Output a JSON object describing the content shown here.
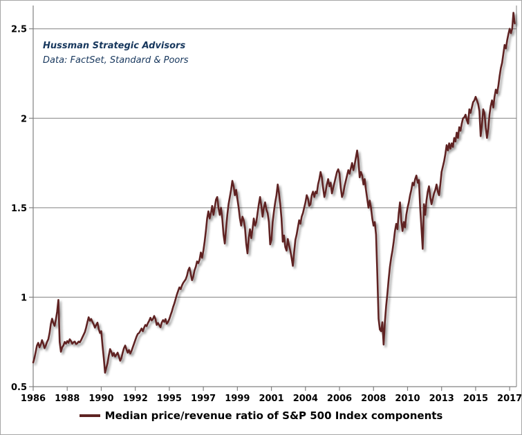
{
  "annotation": {
    "line1": "Hussman Strategic Advisors",
    "line2": "Data: FactSet, Standard & Poors"
  },
  "legend": {
    "label": "Median price/revenue ratio of S&P 500 Index components"
  },
  "colors": {
    "series": "#5E2322",
    "grid": "#808080",
    "axis": "#808080",
    "annotation_text": "#17375D",
    "border": "#A6A6A6"
  },
  "chart_data": {
    "type": "line",
    "title": "",
    "legend_position": "bottom-center",
    "grid": "horizontal-only",
    "xlabel": "",
    "ylabel": "",
    "x_tick_labels": [
      "1986",
      "1988",
      "1990",
      "1992",
      "1995",
      "1997",
      "1999",
      "2001",
      "2004",
      "2006",
      "2008",
      "2010",
      "2013",
      "2015",
      "2017"
    ],
    "x_tick_interval_years": 2.25,
    "y_tick_labels": [
      "0.5",
      "1",
      "1.5",
      "2",
      "2.5"
    ],
    "y_ticks": [
      0.5,
      1,
      1.5,
      2,
      2.5
    ],
    "ylim": [
      0.5,
      2.63
    ],
    "xlim_years": [
      1986.0,
      2017.95
    ],
    "series": [
      {
        "name": "Median price/revenue ratio of S&P 500 Index components",
        "start_year": 1986,
        "frequency": "monthly",
        "values": [
          0.635,
          0.66,
          0.695,
          0.73,
          0.745,
          0.72,
          0.735,
          0.76,
          0.74,
          0.715,
          0.73,
          0.75,
          0.765,
          0.8,
          0.85,
          0.88,
          0.855,
          0.84,
          0.875,
          0.92,
          0.985,
          0.75,
          0.695,
          0.72,
          0.73,
          0.75,
          0.74,
          0.755,
          0.745,
          0.765,
          0.755,
          0.74,
          0.748,
          0.752,
          0.738,
          0.742,
          0.752,
          0.748,
          0.76,
          0.775,
          0.79,
          0.805,
          0.83,
          0.86,
          0.888,
          0.868,
          0.878,
          0.862,
          0.848,
          0.83,
          0.845,
          0.858,
          0.822,
          0.8,
          0.81,
          0.73,
          0.66,
          0.578,
          0.605,
          0.632,
          0.675,
          0.71,
          0.695,
          0.672,
          0.688,
          0.668,
          0.678,
          0.69,
          0.668,
          0.645,
          0.66,
          0.69,
          0.715,
          0.73,
          0.708,
          0.69,
          0.705,
          0.685,
          0.7,
          0.72,
          0.74,
          0.76,
          0.78,
          0.795,
          0.8,
          0.812,
          0.825,
          0.81,
          0.83,
          0.845,
          0.838,
          0.855,
          0.868,
          0.885,
          0.87,
          0.878,
          0.895,
          0.878,
          0.845,
          0.856,
          0.844,
          0.832,
          0.858,
          0.872,
          0.862,
          0.878,
          0.852,
          0.862,
          0.878,
          0.9,
          0.92,
          0.945,
          0.965,
          0.99,
          1.015,
          1.035,
          1.055,
          1.045,
          1.065,
          1.08,
          1.09,
          1.1,
          1.12,
          1.15,
          1.165,
          1.13,
          1.095,
          1.115,
          1.15,
          1.17,
          1.2,
          1.19,
          1.21,
          1.25,
          1.22,
          1.26,
          1.31,
          1.37,
          1.44,
          1.48,
          1.44,
          1.47,
          1.51,
          1.46,
          1.5,
          1.545,
          1.56,
          1.5,
          1.46,
          1.5,
          1.44,
          1.35,
          1.3,
          1.38,
          1.46,
          1.52,
          1.56,
          1.6,
          1.65,
          1.62,
          1.57,
          1.6,
          1.55,
          1.5,
          1.44,
          1.4,
          1.45,
          1.43,
          1.39,
          1.3,
          1.245,
          1.33,
          1.38,
          1.33,
          1.38,
          1.44,
          1.4,
          1.42,
          1.47,
          1.52,
          1.56,
          1.51,
          1.45,
          1.5,
          1.53,
          1.49,
          1.47,
          1.42,
          1.295,
          1.32,
          1.42,
          1.48,
          1.53,
          1.57,
          1.63,
          1.58,
          1.52,
          1.44,
          1.31,
          1.345,
          1.28,
          1.26,
          1.325,
          1.29,
          1.26,
          1.22,
          1.175,
          1.25,
          1.32,
          1.35,
          1.39,
          1.43,
          1.41,
          1.45,
          1.47,
          1.5,
          1.53,
          1.57,
          1.55,
          1.51,
          1.52,
          1.57,
          1.59,
          1.56,
          1.59,
          1.58,
          1.63,
          1.66,
          1.7,
          1.67,
          1.61,
          1.56,
          1.59,
          1.63,
          1.66,
          1.62,
          1.64,
          1.58,
          1.61,
          1.64,
          1.67,
          1.7,
          1.715,
          1.69,
          1.61,
          1.56,
          1.58,
          1.62,
          1.65,
          1.68,
          1.71,
          1.69,
          1.72,
          1.75,
          1.71,
          1.74,
          1.78,
          1.82,
          1.76,
          1.67,
          1.7,
          1.68,
          1.63,
          1.66,
          1.6,
          1.55,
          1.5,
          1.54,
          1.5,
          1.44,
          1.4,
          1.42,
          1.35,
          1.13,
          0.88,
          0.82,
          0.81,
          0.86,
          0.735,
          0.86,
          0.95,
          1.02,
          1.1,
          1.17,
          1.22,
          1.26,
          1.31,
          1.37,
          1.41,
          1.38,
          1.47,
          1.53,
          1.43,
          1.37,
          1.42,
          1.39,
          1.46,
          1.5,
          1.53,
          1.57,
          1.6,
          1.64,
          1.625,
          1.66,
          1.68,
          1.64,
          1.655,
          1.5,
          1.39,
          1.27,
          1.52,
          1.46,
          1.54,
          1.59,
          1.62,
          1.56,
          1.52,
          1.55,
          1.58,
          1.6,
          1.63,
          1.59,
          1.57,
          1.63,
          1.7,
          1.73,
          1.76,
          1.8,
          1.85,
          1.82,
          1.86,
          1.83,
          1.86,
          1.84,
          1.89,
          1.87,
          1.92,
          1.89,
          1.95,
          1.93,
          1.97,
          2.0,
          2.005,
          2.02,
          1.99,
          1.97,
          2.05,
          2.03,
          2.06,
          2.09,
          2.1,
          2.12,
          2.1,
          2.08,
          2.04,
          1.9,
          1.96,
          2.05,
          2.03,
          1.95,
          1.89,
          1.94,
          2.02,
          2.07,
          2.1,
          2.06,
          2.12,
          2.16,
          2.14,
          2.18,
          2.235,
          2.28,
          2.31,
          2.36,
          2.41,
          2.39,
          2.435,
          2.47,
          2.5,
          2.475,
          2.5,
          2.59,
          2.53
        ]
      }
    ]
  }
}
